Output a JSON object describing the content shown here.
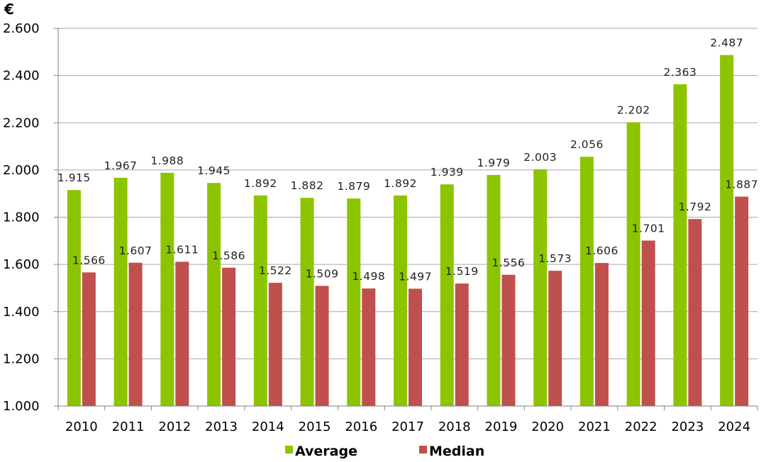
{
  "chart_data": {
    "type": "bar",
    "unit_label": "€",
    "categories": [
      "2010",
      "2011",
      "2012",
      "2013",
      "2014",
      "2015",
      "2016",
      "2017",
      "2018",
      "2019",
      "2020",
      "2021",
      "2022",
      "2023",
      "2024"
    ],
    "series": [
      {
        "name": "Average",
        "color": "#8dc400",
        "values": [
          1915,
          1967,
          1988,
          1945,
          1892,
          1882,
          1879,
          1892,
          1939,
          1979,
          2003,
          2056,
          2202,
          2363,
          2487
        ],
        "labels": [
          "1.915",
          "1.967",
          "1.988",
          "1.945",
          "1.892",
          "1.882",
          "1.879",
          "1.892",
          "1.939",
          "1.979",
          "2.003",
          "2.056",
          "2.202",
          "2.363",
          "2.487"
        ]
      },
      {
        "name": "Median",
        "color": "#c0504d",
        "values": [
          1566,
          1607,
          1611,
          1586,
          1522,
          1509,
          1498,
          1497,
          1519,
          1556,
          1573,
          1606,
          1701,
          1792,
          1887
        ],
        "labels": [
          "1.566",
          "1.607",
          "1.611",
          "1.586",
          "1.522",
          "1.509",
          "1.498",
          "1.497",
          "1.519",
          "1.556",
          "1.573",
          "1.606",
          "1.701",
          "1.792",
          "1.887"
        ]
      }
    ],
    "ylim": [
      1000,
      2600
    ],
    "yticks": [
      1000,
      1200,
      1400,
      1600,
      1800,
      2000,
      2200,
      2400,
      2600
    ],
    "ytick_labels": [
      "1.000",
      "1.200",
      "1.400",
      "1.600",
      "1.800",
      "2.000",
      "2.200",
      "2.400",
      "2.600"
    ],
    "grid": true,
    "legend": "bottom-center"
  }
}
